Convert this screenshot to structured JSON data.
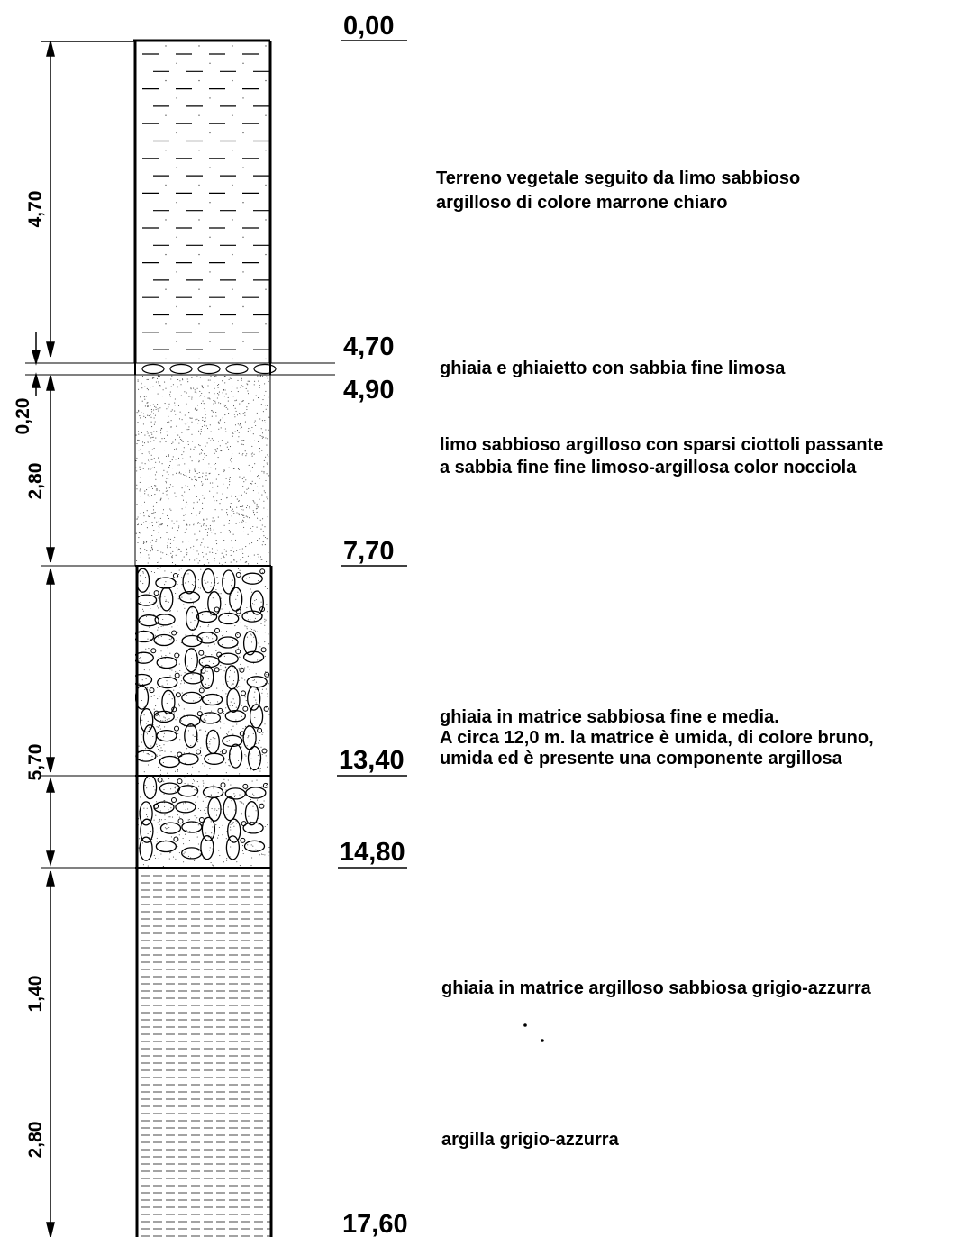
{
  "depths": {
    "d0": "0,00",
    "d1": "4,70",
    "d2": "4,90",
    "d3": "7,70",
    "d4": "13,40",
    "d5": "14,80",
    "d6": "17,60"
  },
  "thickness": {
    "t1": "4,70",
    "t2": "0,20",
    "t3": "2,80",
    "t4": "5,70",
    "t5": "1,40",
    "t6": "2,80"
  },
  "layers": {
    "l1": {
      "line1": "Terreno vegetale seguito da limo sabbioso",
      "line2": "argilloso di colore marrone chiaro"
    },
    "l2": {
      "line1": "ghiaia e ghiaietto con sabbia fine limosa"
    },
    "l3": {
      "line1": "limo sabbioso argilloso con sparsi ciottoli passante",
      "line2": "a sabbia fine fine limoso-argillosa color nocciola"
    },
    "l4": {
      "line1": "ghiaia in matrice sabbiosa fine e media.",
      "line2": "A circa 12,0 m. la matrice è umida, di colore bruno,",
      "line3": "umida ed è presente una componente argillosa"
    },
    "l5": {
      "line1": "ghiaia in matrice argilloso sabbiosa grigio-azzurra"
    },
    "l6": {
      "line1": "argilla grigio-azzurra"
    }
  }
}
